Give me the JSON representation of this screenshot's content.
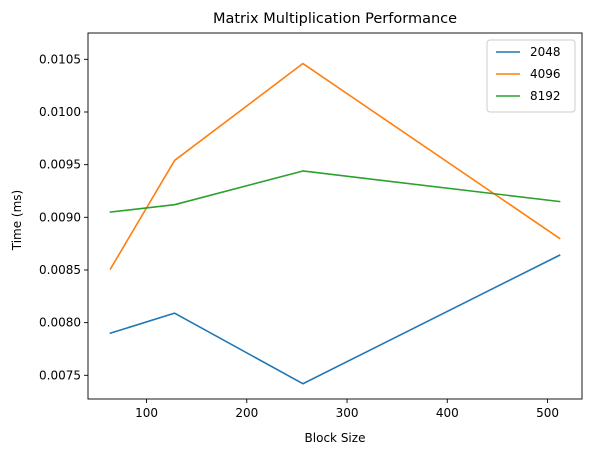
{
  "chart_data": {
    "type": "line",
    "title": "Matrix Multiplication Performance",
    "xlabel": "Block Size",
    "ylabel": "Time (ms)",
    "x": [
      64,
      128,
      256,
      512
    ],
    "xlim": [
      41.6,
      534.4
    ],
    "ylim": [
      0.007275,
      0.01075
    ],
    "xticks": [
      100,
      200,
      300,
      400,
      500
    ],
    "xtick_labels": [
      "100",
      "200",
      "300",
      "400",
      "500"
    ],
    "yticks": [
      0.0075,
      0.008,
      0.0085,
      0.009,
      0.0095,
      0.01,
      0.0105
    ],
    "ytick_labels": [
      "0.0075",
      "0.0080",
      "0.0085",
      "0.0090",
      "0.0095",
      "0.0100",
      "0.0105"
    ],
    "grid": false,
    "legend_position": "top-right",
    "series": [
      {
        "name": "2048",
        "color": "#1f77b4",
        "values": [
          0.0079,
          0.00809,
          0.00742,
          0.00864
        ]
      },
      {
        "name": "4096",
        "color": "#ff7f0e",
        "values": [
          0.00851,
          0.00954,
          0.01046,
          0.0088
        ]
      },
      {
        "name": "8192",
        "color": "#2ca02c",
        "values": [
          0.00905,
          0.00912,
          0.00944,
          0.00915
        ]
      }
    ]
  }
}
